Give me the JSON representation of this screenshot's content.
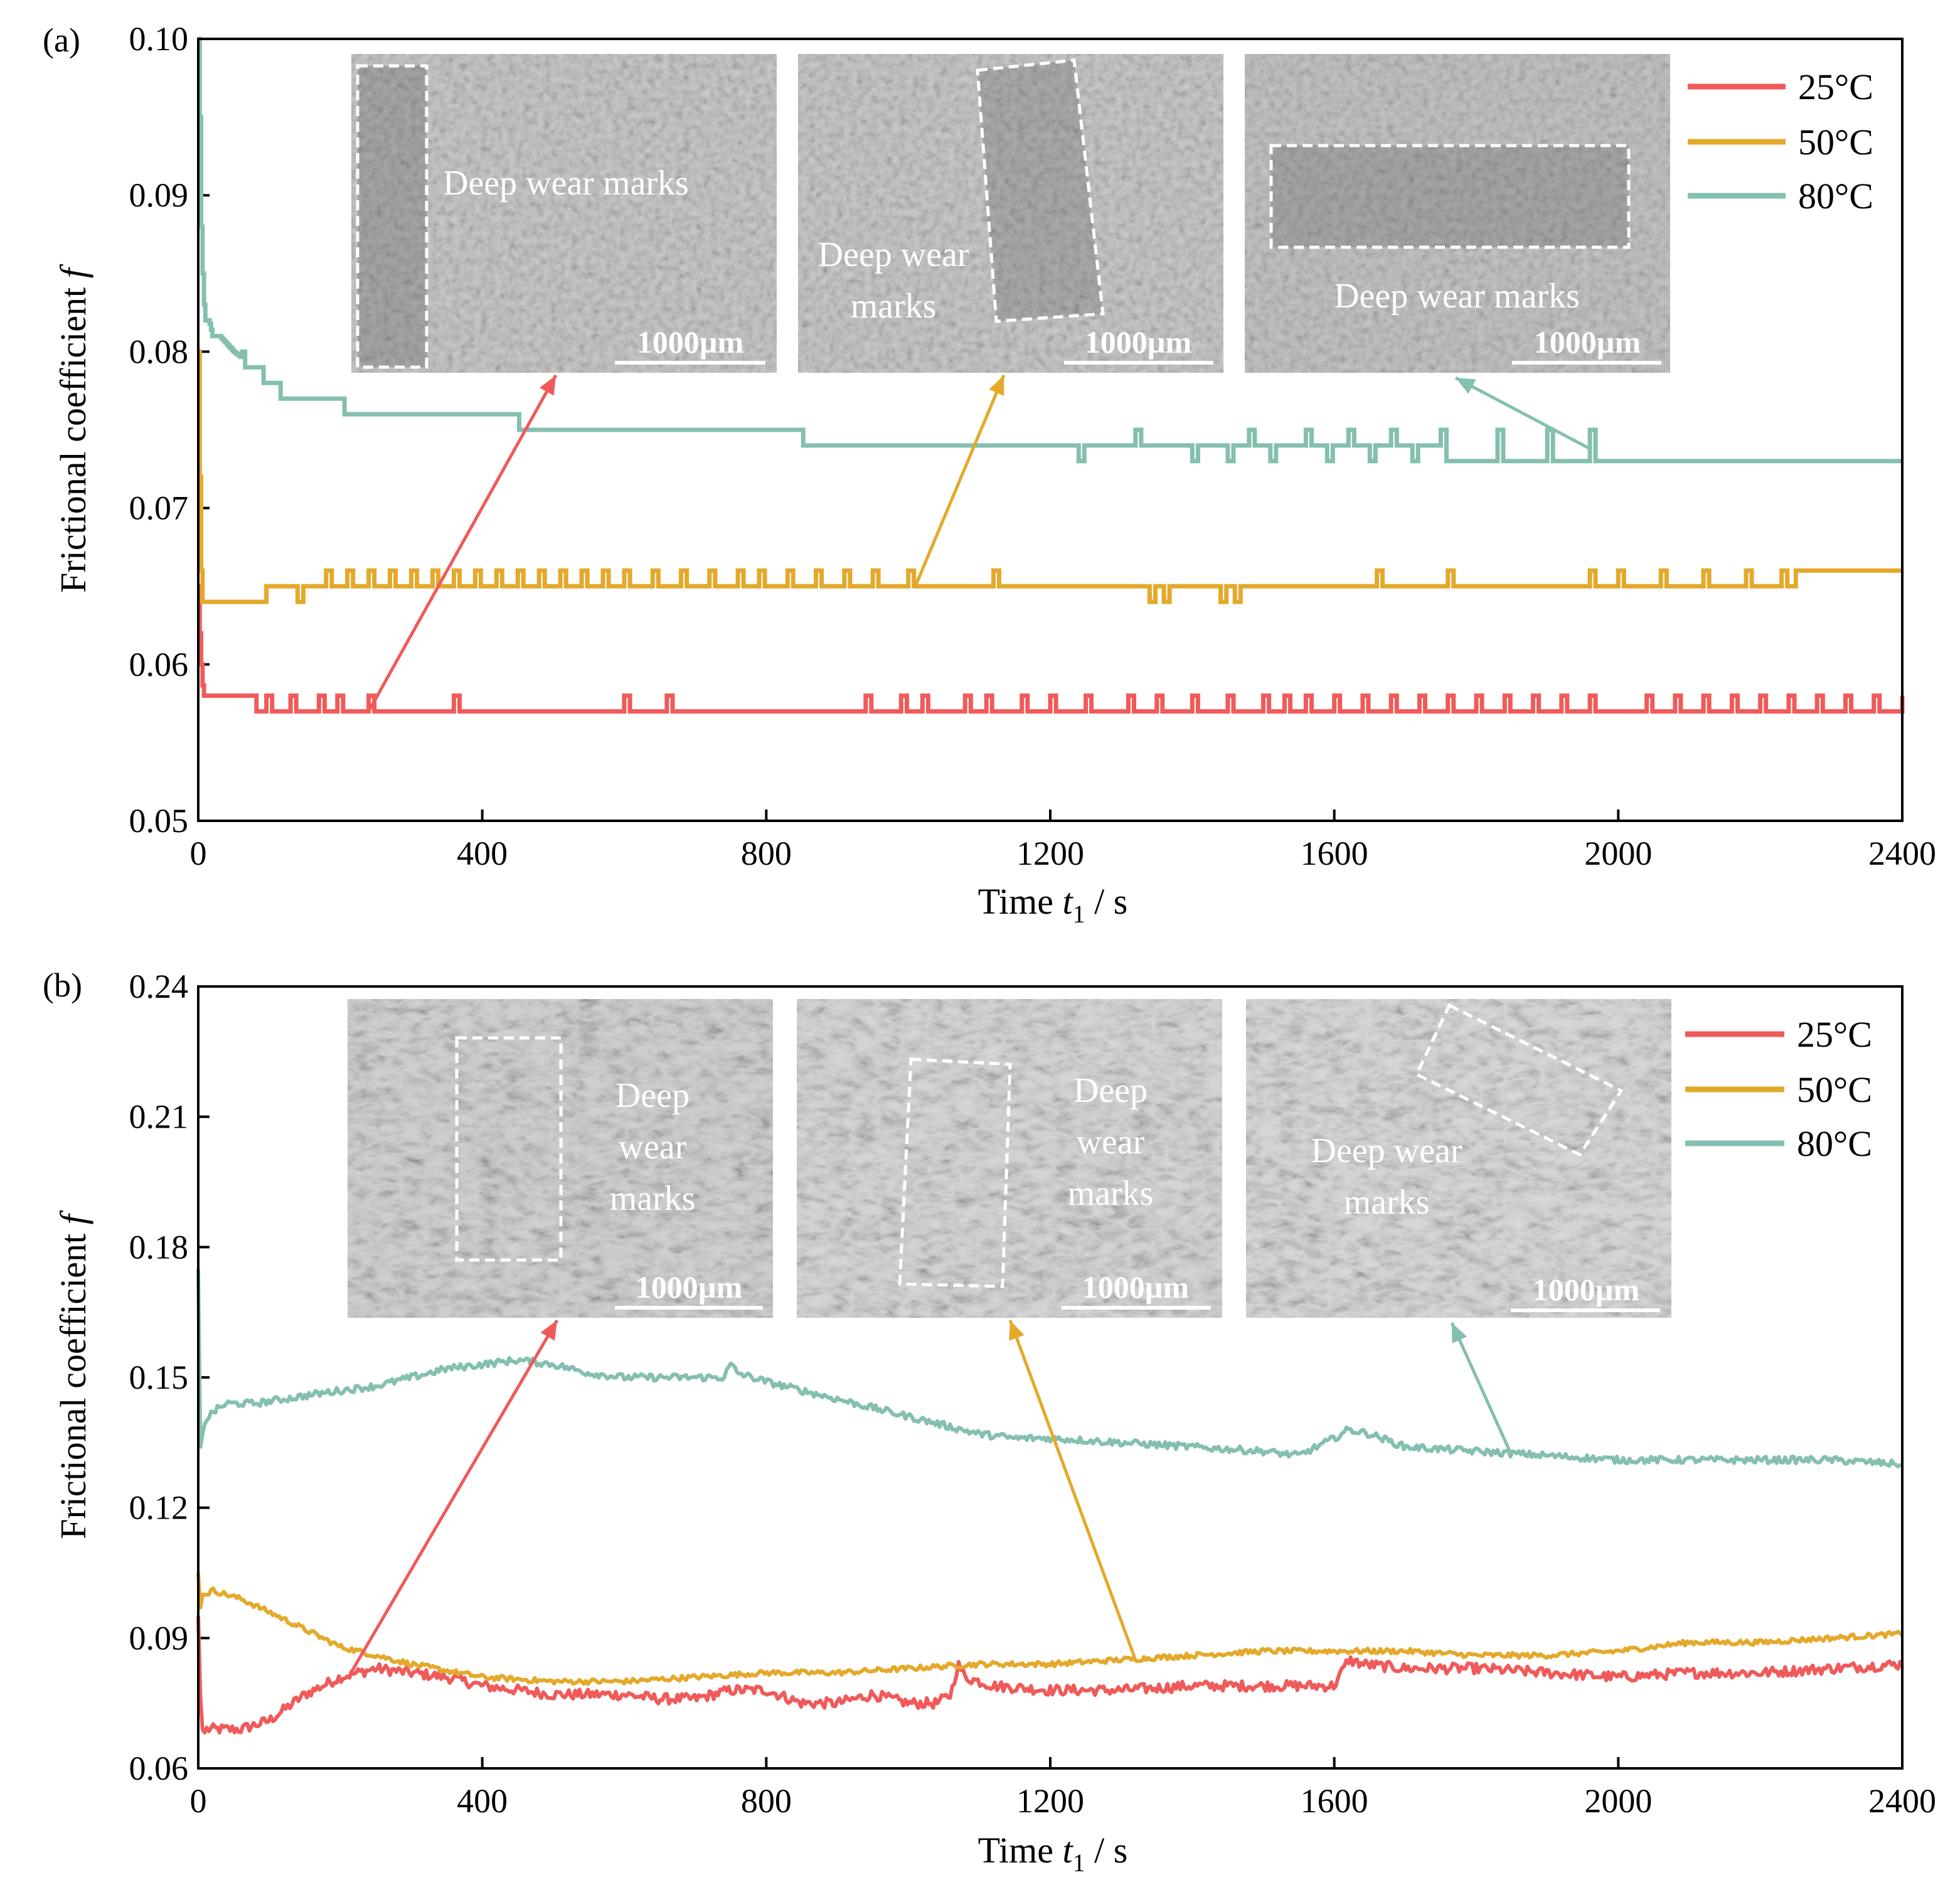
{
  "chart_data": [
    {
      "type": "line",
      "panel_label": "(a)",
      "xlabel": {
        "prefix": "Time ",
        "var": "t",
        "sub": "1",
        "suffix": " / s"
      },
      "ylabel": {
        "text": "Frictional coefficient ",
        "var": "f"
      },
      "xlim": [
        0,
        2400
      ],
      "ylim": [
        0.05,
        0.1
      ],
      "xticks": [
        "0",
        "400",
        "800",
        "1200",
        "1600",
        "2000",
        "2400"
      ],
      "yticks": [
        "0.05",
        "0.06",
        "0.07",
        "0.08",
        "0.09",
        "0.10"
      ],
      "legend_position": "top-right",
      "series": [
        {
          "name": "25°C",
          "color": "#f05a5a",
          "x": [
            0,
            2,
            5,
            8,
            15,
            30,
            60,
            100,
            150,
            200,
            300,
            400,
            600,
            800,
            1000,
            1200,
            1400,
            1600,
            1800,
            2000,
            2200,
            2400
          ],
          "y": [
            0.065,
            0.062,
            0.059,
            0.058,
            0.058,
            0.058,
            0.058,
            0.057,
            0.057,
            0.057,
            0.057,
            0.057,
            0.057,
            0.057,
            0.057,
            0.057,
            0.057,
            0.057,
            0.057,
            0.057,
            0.057,
            0.057
          ],
          "toggle_value": 0.058,
          "toggle_times": [
            60,
            95,
            130,
            170,
            195,
            240,
            360,
            600,
            660,
            940,
            990,
            1020,
            1080,
            1110,
            1160,
            1200,
            1250,
            1310,
            1350,
            1400,
            1450,
            1500,
            1530,
            1560,
            1600,
            1640,
            1680,
            1720,
            1760,
            1800,
            1840,
            1880,
            1920,
            1960,
            2040,
            2080,
            2120,
            2160,
            2200,
            2240,
            2280,
            2320,
            2360,
            2400
          ]
        },
        {
          "name": "50°C",
          "color": "#e4a92b",
          "x": [
            0,
            2,
            4,
            6,
            10,
            20,
            50,
            90,
            100,
            200,
            400,
            600,
            800,
            1000,
            1200,
            1400,
            1600,
            1800,
            2000,
            2200,
            2300,
            2400
          ],
          "y": [
            0.08,
            0.072,
            0.066,
            0.064,
            0.064,
            0.064,
            0.064,
            0.064,
            0.065,
            0.065,
            0.065,
            0.065,
            0.065,
            0.065,
            0.065,
            0.065,
            0.065,
            0.065,
            0.065,
            0.065,
            0.066,
            0.066
          ],
          "toggle_value": 0.066,
          "toggle_times": [
            180,
            210,
            240,
            270,
            300,
            330,
            360,
            390,
            420,
            450,
            480,
            510,
            540,
            570,
            600,
            640,
            680,
            720,
            760,
            790,
            830,
            870,
            910,
            950,
            1000,
            1120,
            1660,
            1760,
            1960,
            2000,
            2060,
            2120,
            2180,
            2230
          ],
          "dip_value": 0.064,
          "dip_times": [
            140,
            1340,
            1360,
            1440,
            1460
          ]
        },
        {
          "name": "80°C",
          "color": "#84bfb0",
          "x": [
            0,
            2,
            4,
            6,
            8,
            10,
            15,
            20,
            30,
            50,
            80,
            100,
            130,
            180,
            230,
            300,
            400,
            500,
            600,
            700,
            800,
            900,
            1000,
            1100,
            1200,
            1300,
            1400,
            1500,
            1600,
            1700,
            1800,
            1900,
            2000,
            2100,
            2200,
            2300,
            2400
          ],
          "y": [
            0.1,
            0.095,
            0.088,
            0.085,
            0.083,
            0.082,
            0.082,
            0.081,
            0.081,
            0.08,
            0.079,
            0.078,
            0.077,
            0.077,
            0.076,
            0.076,
            0.076,
            0.075,
            0.075,
            0.075,
            0.075,
            0.074,
            0.074,
            0.074,
            0.074,
            0.074,
            0.074,
            0.074,
            0.074,
            0.074,
            0.073,
            0.073,
            0.073,
            0.073,
            0.073,
            0.073,
            0.073
          ],
          "toggle_value_up": 0.075,
          "toggle_times_up": [
            1320,
            1480,
            1560,
            1620,
            1680,
            1750,
            1830,
            1900,
            1960
          ],
          "toggle_value_dn": 0.073,
          "toggle_times_dn": [
            1240,
            1400,
            1450,
            1510,
            1590,
            1650,
            1710
          ]
        }
      ],
      "insets": [
        {
          "caption": "Deep wear marks",
          "scale": "1000µm",
          "points_to_series": "25°C",
          "arrow_from": [
            240,
            0.057
          ]
        },
        {
          "caption_lines": [
            "Deep wear",
            "marks"
          ],
          "scale": "1000µm",
          "points_to_series": "50°C",
          "arrow_from": [
            1010,
            0.065
          ]
        },
        {
          "caption": "Deep wear marks",
          "scale": "1000µm",
          "points_to_series": "80°C",
          "arrow_from": [
            1960,
            0.0738
          ]
        }
      ]
    },
    {
      "type": "line",
      "panel_label": "(b)",
      "xlabel": {
        "prefix": "Time ",
        "var": "t",
        "sub": "1",
        "suffix": " / s"
      },
      "ylabel": {
        "text": "Frictional coefficient ",
        "var": "f"
      },
      "xlim": [
        0,
        2400
      ],
      "ylim": [
        0.06,
        0.24
      ],
      "xticks": [
        "0",
        "400",
        "800",
        "1200",
        "1600",
        "2000",
        "2400"
      ],
      "yticks": [
        "0.06",
        "0.09",
        "0.12",
        "0.15",
        "0.18",
        "0.21",
        "0.24"
      ],
      "legend_position": "top-right",
      "series": [
        {
          "name": "25°C",
          "color": "#f05a5a",
          "x": [
            0,
            4,
            8,
            12,
            30,
            60,
            80,
            100,
            150,
            200,
            250,
            300,
            350,
            400,
            450,
            500,
            550,
            600,
            650,
            700,
            750,
            800,
            850,
            900,
            950,
            1000,
            1040,
            1060,
            1070,
            1080,
            1120,
            1200,
            1300,
            1400,
            1500,
            1600,
            1610,
            1620,
            1640,
            1700,
            1800,
            1900,
            2000,
            2100,
            2200,
            2300,
            2400
          ],
          "y": [
            0.095,
            0.07,
            0.068,
            0.069,
            0.069,
            0.069,
            0.07,
            0.071,
            0.077,
            0.081,
            0.083,
            0.082,
            0.081,
            0.079,
            0.078,
            0.077,
            0.077,
            0.077,
            0.076,
            0.076,
            0.078,
            0.078,
            0.075,
            0.075,
            0.077,
            0.075,
            0.075,
            0.077,
            0.084,
            0.081,
            0.079,
            0.078,
            0.078,
            0.079,
            0.079,
            0.079,
            0.082,
            0.085,
            0.084,
            0.083,
            0.083,
            0.082,
            0.081,
            0.082,
            0.082,
            0.083,
            0.084
          ],
          "noise": 0.0012
        },
        {
          "name": "50°C",
          "color": "#e4a92b",
          "x": [
            0,
            3,
            6,
            10,
            20,
            40,
            60,
            100,
            150,
            200,
            300,
            400,
            500,
            600,
            700,
            800,
            900,
            1000,
            1100,
            1200,
            1300,
            1400,
            1500,
            1600,
            1700,
            1800,
            1900,
            2000,
            2100,
            2200,
            2300,
            2400
          ],
          "y": [
            0.105,
            0.097,
            0.1,
            0.1,
            0.101,
            0.1,
            0.099,
            0.096,
            0.092,
            0.088,
            0.084,
            0.081,
            0.08,
            0.08,
            0.081,
            0.082,
            0.082,
            0.083,
            0.084,
            0.084,
            0.085,
            0.086,
            0.087,
            0.087,
            0.087,
            0.086,
            0.086,
            0.087,
            0.089,
            0.089,
            0.09,
            0.091
          ],
          "noise": 0.0006
        },
        {
          "name": "80°C",
          "color": "#84bfb0",
          "x": [
            0,
            2,
            4,
            6,
            10,
            20,
            40,
            80,
            120,
            160,
            200,
            250,
            300,
            350,
            400,
            450,
            500,
            550,
            600,
            650,
            700,
            740,
            750,
            760,
            780,
            800,
            850,
            900,
            950,
            1000,
            1050,
            1100,
            1150,
            1200,
            1300,
            1400,
            1500,
            1550,
            1600,
            1620,
            1650,
            1700,
            1800,
            1900,
            2000,
            2100,
            2200,
            2300,
            2400
          ],
          "y": [
            0.175,
            0.135,
            0.133,
            0.137,
            0.14,
            0.142,
            0.144,
            0.144,
            0.145,
            0.146,
            0.147,
            0.148,
            0.15,
            0.152,
            0.153,
            0.154,
            0.153,
            0.151,
            0.15,
            0.15,
            0.15,
            0.15,
            0.153,
            0.151,
            0.15,
            0.149,
            0.147,
            0.145,
            0.143,
            0.141,
            0.139,
            0.137,
            0.136,
            0.136,
            0.135,
            0.134,
            0.133,
            0.132,
            0.136,
            0.138,
            0.137,
            0.134,
            0.133,
            0.132,
            0.131,
            0.131,
            0.131,
            0.131,
            0.13
          ],
          "noise": 0.0008
        }
      ],
      "insets": [
        {
          "caption_lines": [
            "Deep",
            "wear",
            "marks"
          ],
          "scale": "1000µm",
          "points_to_series": "25°C",
          "arrow_from": [
            215,
            0.082
          ]
        },
        {
          "caption_lines": [
            "Deep",
            "wear",
            "marks"
          ],
          "scale": "1000µm",
          "points_to_series": "50°C",
          "arrow_from": [
            1320,
            0.085
          ]
        },
        {
          "caption_lines": [
            "Deep wear",
            "marks"
          ],
          "scale": "1000µm",
          "points_to_series": "80°C",
          "arrow_from": [
            1850,
            0.132
          ]
        }
      ]
    }
  ]
}
